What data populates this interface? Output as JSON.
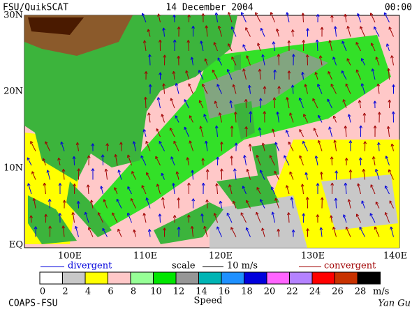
{
  "header": {
    "title": "FSU/QuikSCAT",
    "date": "14 December 2004",
    "time": "00:00"
  },
  "axes": {
    "lat_labels": [
      "30N",
      "20N",
      "10N",
      "EQ"
    ],
    "lon_labels": [
      "100E",
      "110E",
      "120E",
      "130E",
      "140E"
    ]
  },
  "legend": {
    "divergent": "divergent",
    "scale": "scale",
    "scale_value": "10 m/s",
    "convergent": "convergent"
  },
  "colorbar": {
    "labels": [
      "0",
      "2",
      "4",
      "6",
      "8",
      "10",
      "12",
      "14",
      "16",
      "18",
      "20",
      "22",
      "24",
      "26",
      "28"
    ],
    "unit": "m/s",
    "title": "Speed",
    "colors": [
      "#ffffff",
      "#c8c8c8",
      "#ffff00",
      "#ffc8c8",
      "#96ff96",
      "#00e600",
      "#969696",
      "#00b4b4",
      "#1e90ff",
      "#0000dc",
      "#ff64ff",
      "#b482ff",
      "#ff0000",
      "#c83200",
      "#000000"
    ]
  },
  "footer": {
    "left": "COAPS-FSU",
    "right": "Yan Gu"
  }
}
